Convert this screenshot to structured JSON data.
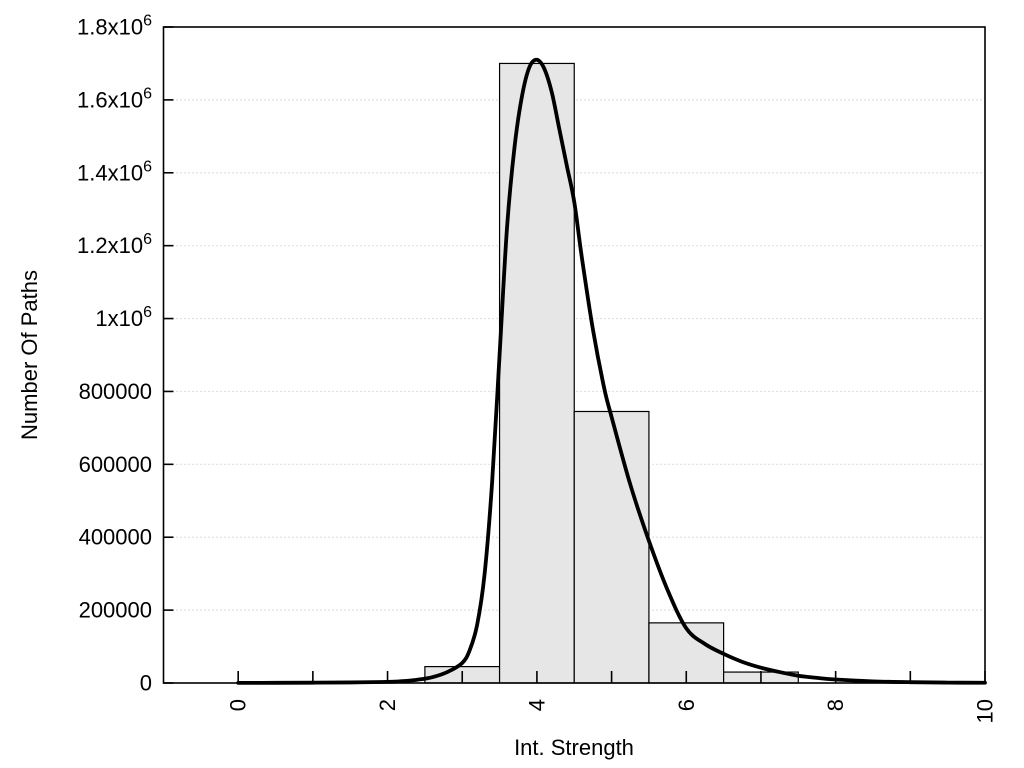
{
  "chart_data": {
    "type": "bar",
    "subtype": "histogram-with-density-curve",
    "title": "",
    "xlabel": "Int. Strength",
    "ylabel": "Number Of Paths",
    "xlim": [
      -1,
      10
    ],
    "ylim": [
      0,
      1800000
    ],
    "grid": "horizontal-dotted",
    "legend": "none",
    "bar_width": 1,
    "bars": {
      "name": "path-count-histogram",
      "centers": [
        3,
        4,
        5,
        6,
        7
      ],
      "values": [
        45000,
        1700000,
        745000,
        165000,
        30000
      ]
    },
    "curve": {
      "name": "density-fit-curve",
      "points": [
        [
          0,
          300
        ],
        [
          0.5,
          500
        ],
        [
          1,
          900
        ],
        [
          1.5,
          1600
        ],
        [
          2,
          3000
        ],
        [
          2.2,
          5000
        ],
        [
          2.4,
          9000
        ],
        [
          2.6,
          16000
        ],
        [
          2.8,
          30000
        ],
        [
          3,
          55000
        ],
        [
          3.1,
          90000
        ],
        [
          3.2,
          160000
        ],
        [
          3.3,
          300000
        ],
        [
          3.4,
          550000
        ],
        [
          3.5,
          900000
        ],
        [
          3.6,
          1250000
        ],
        [
          3.7,
          1470000
        ],
        [
          3.8,
          1610000
        ],
        [
          3.9,
          1690000
        ],
        [
          4,
          1710000
        ],
        [
          4.1,
          1685000
        ],
        [
          4.2,
          1620000
        ],
        [
          4.3,
          1520000
        ],
        [
          4.4,
          1420000
        ],
        [
          4.5,
          1320000
        ],
        [
          4.6,
          1170000
        ],
        [
          4.75,
          970000
        ],
        [
          4.9,
          810000
        ],
        [
          5,
          730000
        ],
        [
          5.25,
          545000
        ],
        [
          5.5,
          390000
        ],
        [
          5.75,
          255000
        ],
        [
          6,
          150000
        ],
        [
          6.25,
          107000
        ],
        [
          6.5,
          80000
        ],
        [
          6.75,
          58000
        ],
        [
          7,
          42000
        ],
        [
          7.25,
          30000
        ],
        [
          7.5,
          20000
        ],
        [
          7.75,
          14000
        ],
        [
          8,
          9500
        ],
        [
          8.5,
          4500
        ],
        [
          9,
          2200
        ],
        [
          9.5,
          1100
        ],
        [
          10,
          600
        ]
      ]
    },
    "xticks": {
      "major_values": [
        0,
        2,
        4,
        6,
        8,
        10
      ],
      "major_labels": [
        "0",
        "2",
        "4",
        "6",
        "8",
        "10"
      ],
      "minor_values": [
        1,
        3,
        5,
        7,
        9
      ],
      "label_rotation_deg": -90
    },
    "yticks": {
      "values": [
        0,
        200000,
        400000,
        600000,
        800000,
        1000000,
        1200000,
        1400000,
        1600000,
        1800000
      ],
      "labels": [
        "0",
        "200000",
        "400000",
        "600000",
        "800000",
        "1x10^6",
        "1.2x10^6",
        "1.4x10^6",
        "1.6x10^6",
        "1.8x10^6"
      ]
    },
    "styles": {
      "background": "#ffffff",
      "bar_fill": "#e6e6e6",
      "bar_stroke": "#000000",
      "curve_color": "#000000",
      "grid_color": "#c2c2c2",
      "axis_color": "#000000"
    }
  }
}
